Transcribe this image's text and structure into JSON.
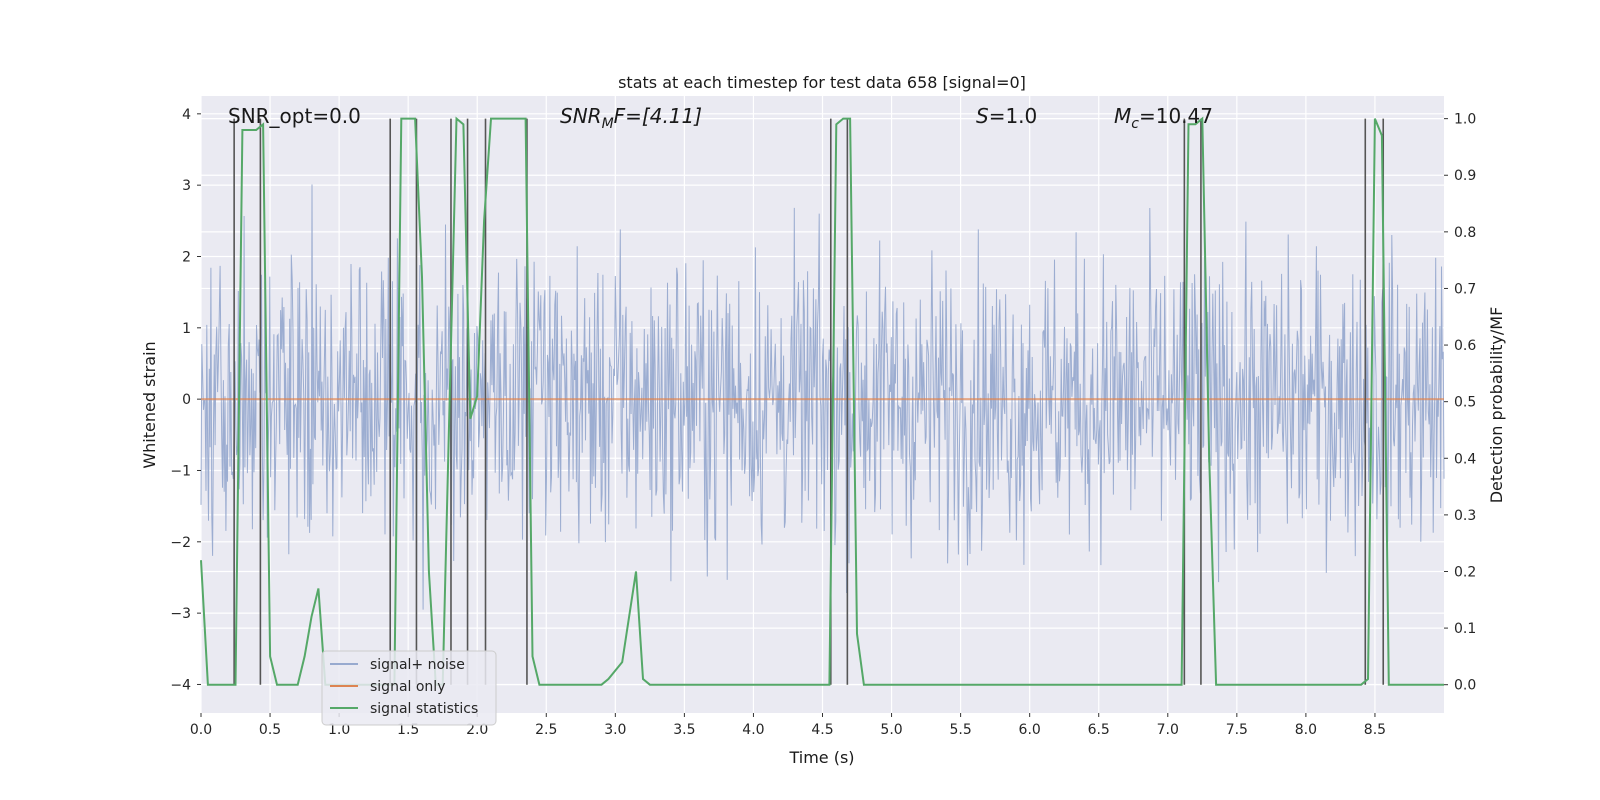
{
  "chart_data": {
    "type": "line",
    "title": "stats at each timestep for test data 658 [signal=0]",
    "xlabel": "Time (s)",
    "ylabel": "Whitened strain",
    "ylabel_right": "Detection probability/MF",
    "xlim": [
      0.0,
      9.0
    ],
    "ylim": [
      -4.4,
      4.25
    ],
    "ylim_right": [
      -0.05,
      1.04
    ],
    "x_ticks": [
      0.0,
      0.5,
      1.0,
      1.5,
      2.0,
      2.5,
      3.0,
      3.5,
      4.0,
      4.5,
      5.0,
      5.5,
      6.0,
      6.5,
      7.0,
      7.5,
      8.0,
      8.5
    ],
    "x_tick_labels": [
      "0.0",
      "0.5",
      "1.0",
      "1.5",
      "2.0",
      "2.5",
      "3.0",
      "3.5",
      "4.0",
      "4.5",
      "5.0",
      "5.5",
      "6.0",
      "6.5",
      "7.0",
      "7.5",
      "8.0",
      "8.5"
    ],
    "y_ticks": [
      4,
      3,
      2,
      1,
      0,
      -1,
      -2,
      -3,
      -4
    ],
    "y_tick_labels": [
      "4",
      "3",
      "2",
      "1",
      "0",
      "−1",
      "−2",
      "−3",
      "−4"
    ],
    "y2_ticks": [
      1.0,
      0.9,
      0.8,
      0.7,
      0.6,
      0.5,
      0.4,
      0.3,
      0.2,
      0.1,
      0.0
    ],
    "y2_tick_labels": [
      "1.0",
      "0.9",
      "0.8",
      "0.7",
      "0.6",
      "0.5",
      "0.4",
      "0.3",
      "0.2",
      "0.1",
      "0.0"
    ],
    "grid": true,
    "legend_position": "lower-left",
    "annotations": {
      "snr_opt": "SNR_opt=0.0",
      "snr_mf_prefix": "SNR",
      "snr_mf_sub": "M",
      "snr_mf_suffix": "F=[4.11]",
      "s_prefix": "S",
      "s_suffix": "=1.0",
      "mc_prefix": "M",
      "mc_sub": "c",
      "mc_suffix": "=10.47"
    },
    "series": [
      {
        "name": "signal+ noise",
        "color": "#98aacf",
        "axis": "left",
        "description_range": [
          -3.9,
          3.9
        ]
      },
      {
        "name": "signal only",
        "color": "#dd8452",
        "axis": "left",
        "x": [
          0.0,
          9.0
        ],
        "y": [
          0.0,
          0.0
        ]
      },
      {
        "name": "signal statistics",
        "color": "#55a868",
        "axis": "right",
        "x": [
          0.0,
          0.05,
          0.1,
          0.25,
          0.3,
          0.4,
          0.45,
          0.5,
          0.55,
          0.6,
          0.7,
          0.75,
          0.8,
          0.85,
          0.9,
          1.0,
          1.1,
          1.2,
          1.3,
          1.4,
          1.45,
          1.55,
          1.6,
          1.65,
          1.7,
          1.75,
          1.85,
          1.9,
          1.95,
          2.0,
          2.05,
          2.1,
          2.15,
          2.35,
          2.4,
          2.45,
          2.5,
          2.9,
          2.95,
          3.05,
          3.15,
          3.2,
          3.25,
          4.55,
          4.6,
          4.65,
          4.7,
          4.75,
          4.8,
          7.1,
          7.15,
          7.2,
          7.25,
          7.3,
          7.35,
          7.4,
          8.4,
          8.45,
          8.5,
          8.55,
          8.6,
          9.0
        ],
        "y": [
          0.22,
          0.0,
          0.0,
          0.0,
          0.98,
          0.98,
          0.99,
          0.05,
          0.0,
          0.0,
          0.0,
          0.05,
          0.12,
          0.17,
          0.0,
          0.0,
          0.0,
          0.0,
          0.0,
          0.0,
          1.0,
          1.0,
          0.72,
          0.2,
          0.0,
          0.0,
          1.0,
          0.99,
          0.47,
          0.51,
          0.82,
          1.0,
          1.0,
          1.0,
          0.05,
          0.0,
          0.0,
          0.0,
          0.01,
          0.04,
          0.2,
          0.01,
          0.0,
          0.0,
          0.99,
          1.0,
          1.0,
          0.09,
          0.0,
          0.0,
          0.99,
          0.99,
          1.0,
          0.4,
          0.0,
          0.0,
          0.0,
          0.01,
          1.0,
          0.97,
          0.0,
          0.0
        ]
      }
    ],
    "detection_markers": {
      "color": "#555555",
      "x": [
        0.24,
        0.43,
        1.37,
        1.56,
        1.81,
        1.93,
        2.06,
        2.36,
        4.56,
        4.68,
        7.12,
        7.24,
        8.43,
        8.56
      ]
    }
  }
}
